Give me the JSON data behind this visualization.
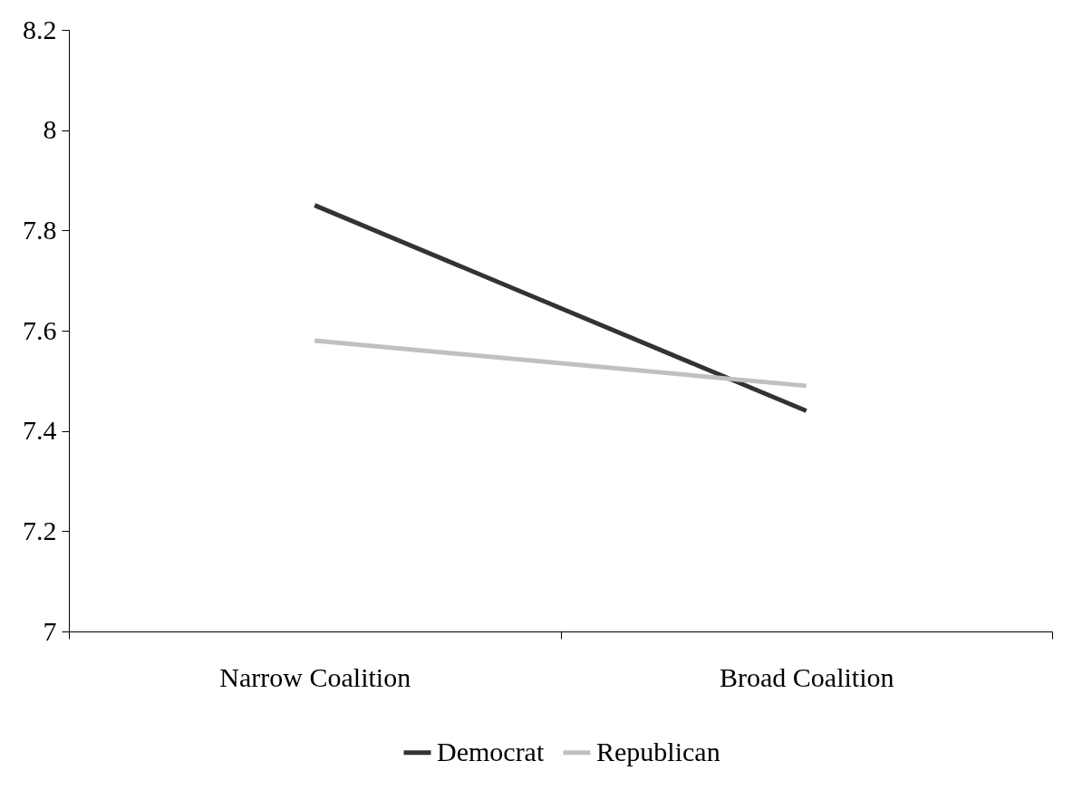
{
  "chart_data": {
    "type": "line",
    "categories": [
      "Narrow Coalition",
      "Broad Coalition"
    ],
    "series": [
      {
        "name": "Democrat",
        "color": "#333333",
        "values": [
          7.85,
          7.44
        ]
      },
      {
        "name": "Republican",
        "color": "#c0c0c0",
        "values": [
          7.58,
          7.49
        ]
      }
    ],
    "ylim": [
      7,
      8.2
    ],
    "yticks": [
      7,
      7.2,
      7.4,
      7.6,
      7.8,
      8,
      8.2
    ],
    "grid": false,
    "legend": "bottom",
    "marker": "none",
    "line_style": "solid"
  }
}
